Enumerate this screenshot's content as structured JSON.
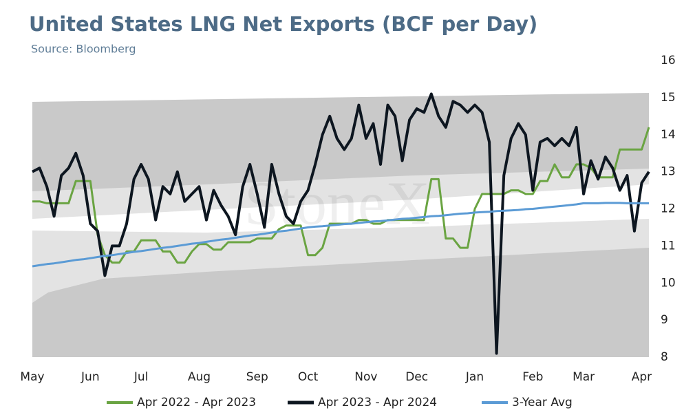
{
  "chart_data": {
    "type": "line",
    "title": "United States LNG Net Exports (BCF per Day)",
    "subtitle": "Source: Bloomberg",
    "watermark": "StoneX",
    "categories": [
      "May",
      null,
      null,
      null,
      null,
      null,
      null,
      null,
      "Jun",
      null,
      null,
      null,
      null,
      null,
      null,
      "Jul",
      null,
      null,
      null,
      null,
      null,
      null,
      null,
      "Aug",
      null,
      null,
      null,
      null,
      null,
      null,
      null,
      "Sep",
      null,
      null,
      null,
      null,
      null,
      null,
      "Oct",
      null,
      null,
      null,
      null,
      null,
      null,
      null,
      "Nov",
      null,
      null,
      null,
      null,
      null,
      null,
      "Dec",
      null,
      null,
      null,
      null,
      null,
      null,
      null,
      "Jan",
      null,
      null,
      null,
      null,
      null,
      null,
      null,
      "Feb",
      null,
      null,
      null,
      null,
      null,
      null,
      "Mar",
      null,
      null,
      null,
      null,
      null,
      null,
      null,
      "Apr",
      null
    ],
    "series": [
      {
        "name": "Apr 2022 - Apr 2023",
        "color": "#6aa442",
        "width": 3,
        "values": [
          12.2,
          12.2,
          12.15,
          12.15,
          12.15,
          12.15,
          12.75,
          12.75,
          12.75,
          11.3,
          10.75,
          10.55,
          10.55,
          10.85,
          10.85,
          11.15,
          11.15,
          11.15,
          10.85,
          10.85,
          10.55,
          10.55,
          10.85,
          11.05,
          11.05,
          10.9,
          10.9,
          11.1,
          11.1,
          11.1,
          11.1,
          11.2,
          11.2,
          11.2,
          11.45,
          11.55,
          11.55,
          11.55,
          10.75,
          10.75,
          10.95,
          11.6,
          11.6,
          11.6,
          11.6,
          11.7,
          11.7,
          11.6,
          11.6,
          11.7,
          11.7,
          11.7,
          11.7,
          11.7,
          11.7,
          12.8,
          12.8,
          11.2,
          11.2,
          10.95,
          10.95,
          12.0,
          12.4,
          12.4,
          12.4,
          12.4,
          12.5,
          12.5,
          12.4,
          12.4,
          12.75,
          12.75,
          13.2,
          12.85,
          12.85,
          13.2,
          13.2,
          13.1,
          12.85,
          12.85,
          12.85,
          13.6,
          13.6,
          13.6,
          13.6,
          14.2
        ]
      },
      {
        "name": "Apr 2023 - Apr 2024",
        "color": "#0d1620",
        "width": 4,
        "values": [
          13.0,
          13.1,
          12.6,
          11.8,
          12.9,
          13.1,
          13.5,
          12.9,
          11.6,
          11.4,
          10.2,
          11.0,
          11.0,
          11.6,
          12.8,
          13.2,
          12.8,
          11.7,
          12.6,
          12.4,
          13.0,
          12.2,
          12.4,
          12.6,
          11.7,
          12.5,
          12.1,
          11.8,
          11.3,
          12.6,
          13.2,
          12.4,
          11.5,
          13.2,
          12.4,
          11.8,
          11.6,
          12.2,
          12.5,
          13.2,
          14.0,
          14.5,
          13.9,
          13.6,
          13.9,
          14.8,
          13.9,
          14.3,
          13.2,
          14.8,
          14.5,
          13.3,
          14.4,
          14.7,
          14.6,
          15.1,
          14.5,
          14.2,
          14.9,
          14.8,
          14.6,
          14.8,
          14.6,
          13.8,
          8.1,
          12.9,
          13.9,
          14.3,
          14.0,
          12.5,
          13.8,
          13.9,
          13.7,
          13.9,
          13.7,
          14.2,
          12.4,
          13.3,
          12.8,
          13.4,
          13.1,
          12.5,
          12.9,
          11.4,
          12.7,
          13.0
        ]
      },
      {
        "name": "3-Year Avg",
        "color": "#5b9bd5",
        "width": 3,
        "values": [
          10.45,
          10.48,
          10.51,
          10.53,
          10.56,
          10.59,
          10.62,
          10.64,
          10.67,
          10.7,
          10.73,
          10.75,
          10.78,
          10.81,
          10.84,
          10.86,
          10.89,
          10.92,
          10.95,
          10.97,
          11.0,
          11.03,
          11.06,
          11.08,
          11.11,
          11.14,
          11.17,
          11.19,
          11.22,
          11.25,
          11.28,
          11.3,
          11.33,
          11.36,
          11.39,
          11.41,
          11.44,
          11.47,
          11.5,
          11.52,
          11.53,
          11.55,
          11.57,
          11.59,
          11.6,
          11.62,
          11.64,
          11.66,
          11.67,
          11.69,
          11.71,
          11.73,
          11.74,
          11.76,
          11.78,
          11.8,
          11.81,
          11.83,
          11.85,
          11.87,
          11.88,
          11.9,
          11.91,
          11.92,
          11.94,
          11.95,
          11.96,
          11.97,
          11.99,
          12.0,
          12.02,
          12.04,
          12.06,
          12.08,
          12.1,
          12.12,
          12.15,
          12.15,
          12.15,
          12.16,
          12.16,
          12.16,
          12.15,
          12.15,
          12.15,
          12.15
        ]
      }
    ],
    "ylim": [
      8,
      16
    ],
    "yticks": [
      8,
      9,
      10,
      11,
      12,
      13,
      14,
      15,
      16
    ],
    "grid": false,
    "legend": "bottom"
  }
}
